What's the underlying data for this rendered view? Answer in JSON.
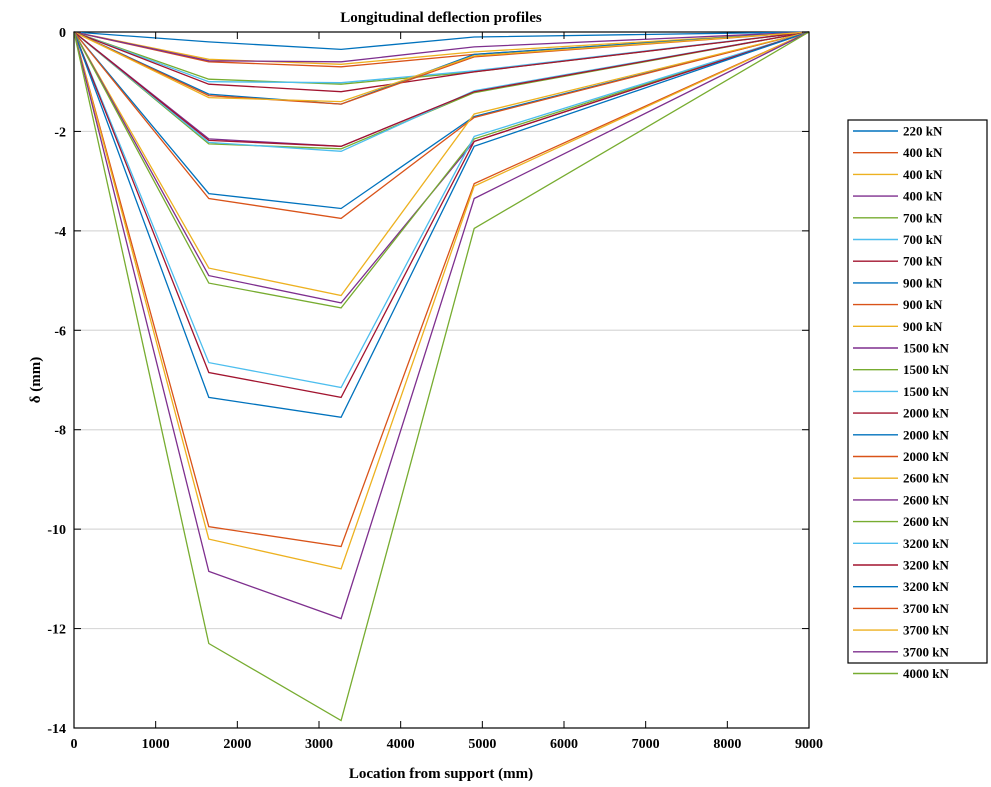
{
  "chart_data": {
    "type": "line",
    "title": "Longitudinal deflection profiles",
    "xlabel": "Location from support (mm)",
    "ylabel": "δ (mm)",
    "xlim": [
      0,
      9000
    ],
    "ylim": [
      -14,
      0
    ],
    "xticks": [
      "0",
      "1000",
      "2000",
      "3000",
      "4000",
      "5000",
      "6000",
      "7000",
      "8000",
      "9000"
    ],
    "yticks": [
      "0",
      "-2",
      "-4",
      "-6",
      "-8",
      "-10",
      "-12",
      "-14"
    ],
    "grid": "horizontal",
    "legend_position": "right",
    "x": [
      0,
      1650,
      3270,
      4900,
      9000
    ],
    "series": [
      {
        "name": "220 kN",
        "color": "#0072BD",
        "values": [
          0,
          -0.2,
          -0.35,
          -0.1,
          0
        ]
      },
      {
        "name": "400 kN",
        "color": "#D95319",
        "values": [
          0,
          -0.6,
          -0.7,
          -0.45,
          0
        ]
      },
      {
        "name": "400 kN",
        "color": "#EDB120",
        "values": [
          0,
          -0.55,
          -0.65,
          -0.4,
          0
        ]
      },
      {
        "name": "400 kN",
        "color": "#7E2F8E",
        "values": [
          0,
          -0.58,
          -0.6,
          -0.3,
          0
        ]
      },
      {
        "name": "700 kN",
        "color": "#77AC30",
        "values": [
          0,
          -0.95,
          -1.05,
          -0.8,
          0
        ]
      },
      {
        "name": "700 kN",
        "color": "#4DBEEE",
        "values": [
          0,
          -1.0,
          -1.02,
          -0.78,
          0
        ]
      },
      {
        "name": "700 kN",
        "color": "#A2142F",
        "values": [
          0,
          -1.05,
          -1.2,
          -0.8,
          0
        ]
      },
      {
        "name": "900 kN",
        "color": "#0072BD",
        "values": [
          0,
          -1.25,
          -1.45,
          -0.45,
          0
        ]
      },
      {
        "name": "900 kN",
        "color": "#D95319",
        "values": [
          0,
          -1.28,
          -1.45,
          -0.5,
          0
        ]
      },
      {
        "name": "900 kN",
        "color": "#EDB120",
        "values": [
          0,
          -1.32,
          -1.4,
          -0.48,
          0
        ]
      },
      {
        "name": "1500 kN",
        "color": "#7E2F8E",
        "values": [
          0,
          -2.15,
          -2.3,
          -1.2,
          0
        ]
      },
      {
        "name": "1500 kN",
        "color": "#77AC30",
        "values": [
          0,
          -2.25,
          -2.35,
          -1.22,
          0
        ]
      },
      {
        "name": "1500 kN",
        "color": "#4DBEEE",
        "values": [
          0,
          -2.22,
          -2.4,
          -1.18,
          0
        ]
      },
      {
        "name": "2000 kN",
        "color": "#A2142F",
        "values": [
          0,
          -2.18,
          -2.3,
          -1.2,
          0
        ]
      },
      {
        "name": "2000 kN",
        "color": "#0072BD",
        "values": [
          0,
          -3.25,
          -3.55,
          -1.7,
          0
        ]
      },
      {
        "name": "2000 kN",
        "color": "#D95319",
        "values": [
          0,
          -3.35,
          -3.75,
          -1.72,
          0
        ]
      },
      {
        "name": "2600 kN",
        "color": "#EDB120",
        "values": [
          0,
          -4.75,
          -5.3,
          -1.65,
          0
        ]
      },
      {
        "name": "2600 kN",
        "color": "#7E2F8E",
        "values": [
          0,
          -4.9,
          -5.45,
          -2.2,
          0
        ]
      },
      {
        "name": "2600 kN",
        "color": "#77AC30",
        "values": [
          0,
          -5.05,
          -5.55,
          -2.15,
          0
        ]
      },
      {
        "name": "3200 kN",
        "color": "#4DBEEE",
        "values": [
          0,
          -6.65,
          -7.15,
          -2.1,
          0
        ]
      },
      {
        "name": "3200 kN",
        "color": "#A2142F",
        "values": [
          0,
          -6.85,
          -7.35,
          -2.2,
          0
        ]
      },
      {
        "name": "3200 kN",
        "color": "#0072BD",
        "values": [
          0,
          -7.35,
          -7.75,
          -2.3,
          0
        ]
      },
      {
        "name": "3700 kN",
        "color": "#D95319",
        "values": [
          0,
          -9.95,
          -10.35,
          -3.05,
          0
        ]
      },
      {
        "name": "3700 kN",
        "color": "#EDB120",
        "values": [
          0,
          -10.2,
          -10.8,
          -3.1,
          0
        ]
      },
      {
        "name": "3700 kN",
        "color": "#7E2F8E",
        "values": [
          0,
          -10.85,
          -11.8,
          -3.35,
          0
        ]
      },
      {
        "name": "4000 kN",
        "color": "#77AC30",
        "values": [
          0,
          -12.3,
          -13.85,
          -3.95,
          0
        ]
      }
    ]
  }
}
